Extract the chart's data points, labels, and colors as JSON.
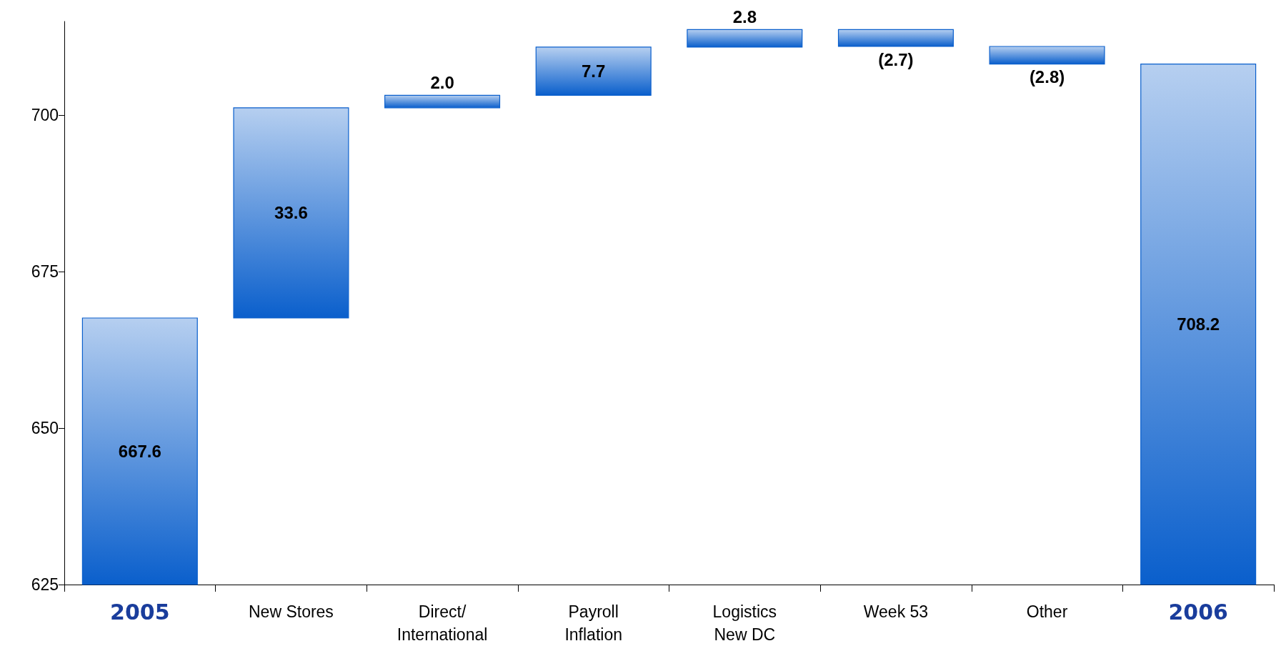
{
  "chart_data": {
    "type": "bar",
    "categories": [
      "2005",
      "New Stores",
      "Direct/\nInternational",
      "Payroll\nInflation",
      "Logistics\nNew DC",
      "Week 53",
      "Other",
      "2006"
    ],
    "values": [
      667.6,
      33.6,
      2.0,
      7.7,
      2.8,
      -2.7,
      -2.8,
      708.2
    ],
    "base": [
      null,
      667.6,
      701.2,
      703.2,
      710.9,
      713.7,
      711.0,
      null
    ],
    "value_labels": [
      "667.6",
      "33.6",
      "2.0",
      "7.7",
      "2.8",
      "(2.7)",
      "(2.8)",
      "708.2"
    ],
    "color": "#0a5fcc",
    "ylim": [
      625,
      715
    ],
    "yticks": [
      625,
      650,
      675,
      700
    ],
    "grid": false
  }
}
